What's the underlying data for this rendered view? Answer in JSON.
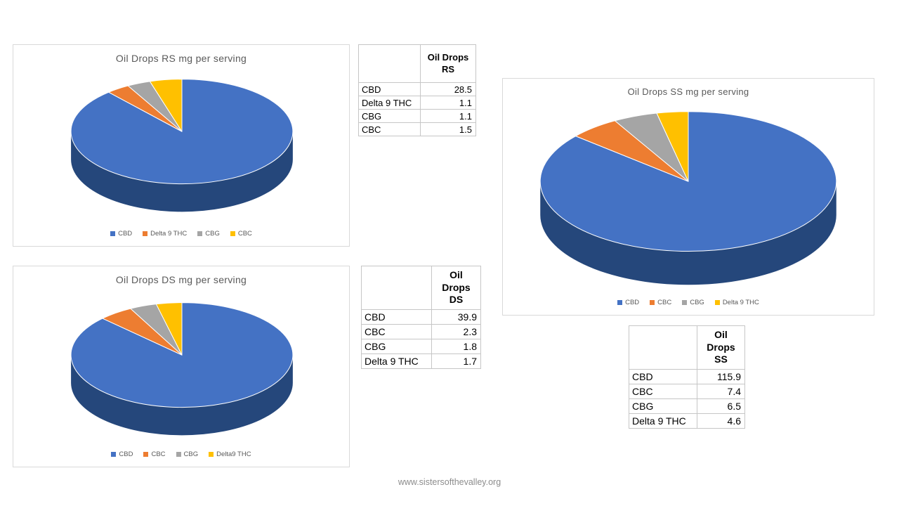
{
  "page": {
    "footer_text": "www.sistersofthevalley.org"
  },
  "colors": {
    "blue": "#4472C4",
    "orange": "#ED7D31",
    "gray": "#A5A5A5",
    "yellow": "#FFC000",
    "pie_side": "#25477B",
    "title_gray": "#595959"
  },
  "chart_data": [
    {
      "id": "rs",
      "type": "pie",
      "effect": "3d",
      "title": "Oil Drops RS mg per serving",
      "categories": [
        "CBD",
        "Delta 9 THC",
        "CBG",
        "CBC"
      ],
      "values": [
        28.5,
        1.1,
        1.1,
        1.5
      ],
      "colors": [
        "#4472C4",
        "#ED7D31",
        "#A5A5A5",
        "#FFC000"
      ],
      "legend_position": "bottom",
      "start_angle_deg": 0
    },
    {
      "id": "ss",
      "type": "pie",
      "effect": "3d",
      "title": "Oil Drops SS mg per serving",
      "categories": [
        "CBD",
        "CBC",
        "CBG",
        "Delta 9 THC"
      ],
      "values": [
        115.9,
        7.4,
        6.5,
        4.6
      ],
      "colors": [
        "#4472C4",
        "#ED7D31",
        "#A5A5A5",
        "#FFC000"
      ],
      "legend_position": "bottom",
      "start_angle_deg": 0
    },
    {
      "id": "ds",
      "type": "pie",
      "effect": "3d",
      "title": "Oil Drops DS mg per serving",
      "categories": [
        "CBD",
        "CBC",
        "CBG",
        "Delta9 THC"
      ],
      "values": [
        39.9,
        2.3,
        1.8,
        1.7
      ],
      "colors": [
        "#4472C4",
        "#ED7D31",
        "#A5A5A5",
        "#FFC000"
      ],
      "legend_position": "bottom",
      "start_angle_deg": 0
    }
  ],
  "tables": {
    "rs": {
      "header": "Oil Drops\nRS",
      "rows": [
        {
          "label": "CBD",
          "value": "28.5"
        },
        {
          "label": "Delta 9 THC",
          "value": "1.1"
        },
        {
          "label": "CBG",
          "value": "1.1"
        },
        {
          "label": "CBC",
          "value": "1.5"
        }
      ]
    },
    "ds": {
      "header": "Oil\nDrops\nDS",
      "rows": [
        {
          "label": "CBD",
          "value": "39.9"
        },
        {
          "label": "CBC",
          "value": "2.3"
        },
        {
          "label": "CBG",
          "value": "1.8"
        },
        {
          "label": "Delta 9 THC",
          "value": "1.7"
        }
      ]
    },
    "ss": {
      "header": "Oil\nDrops\nSS",
      "rows": [
        {
          "label": "CBD",
          "value": "115.9"
        },
        {
          "label": "CBC",
          "value": "7.4"
        },
        {
          "label": "CBG",
          "value": "6.5"
        },
        {
          "label": "Delta 9 THC",
          "value": "4.6"
        }
      ]
    }
  }
}
